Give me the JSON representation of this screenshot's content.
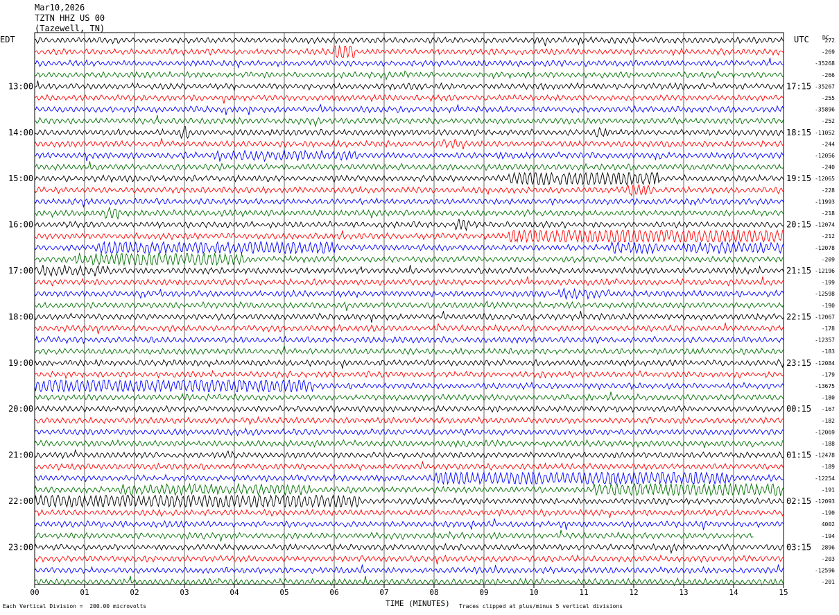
{
  "header": {
    "date": "Mar10,2026",
    "station": "TZTN HHZ US 00",
    "location": "(Tazewell, TN)"
  },
  "left_tz": "EDT",
  "right_tz": "UTC",
  "dc_label": "DC",
  "footer": {
    "division_note": "Each Vertical Division =  200.00 microvolts",
    "clip_note": "Traces clipped at plus/minus 5 vertical divisions",
    "xlabel": "TIME (MINUTES)"
  },
  "chart_data": {
    "type": "line",
    "title": "",
    "xlabel": "TIME (MINUTES)",
    "xlim": [
      0,
      15
    ],
    "x_ticks": [
      "00",
      "01",
      "02",
      "03",
      "04",
      "05",
      "06",
      "07",
      "08",
      "09",
      "10",
      "11",
      "12",
      "13",
      "14",
      "15"
    ],
    "left_hour_labels": [
      "13:00",
      "14:00",
      "15:00",
      "16:00",
      "17:00",
      "18:00",
      "19:00",
      "20:00",
      "21:00",
      "22:00",
      "23:00"
    ],
    "right_hour_labels": [
      "17:15",
      "18:15",
      "19:15",
      "20:15",
      "21:15",
      "22:15",
      "23:15",
      "00:15",
      "01:15",
      "02:15",
      "03:15"
    ],
    "trace_colors": [
      "#000000",
      "#ff0000",
      "#0000ff",
      "#007000"
    ],
    "dc_offsets": [
      "272",
      "-269",
      "-35268",
      "-266",
      "-35267",
      "-255",
      "-35896",
      "-252",
      "-11052",
      "-244",
      "-12056",
      "-240",
      "-12065",
      "-228",
      "-11993",
      "-218",
      "-12074",
      "-212",
      "-12078",
      "-209",
      "-12196",
      "-199",
      "-12598",
      "-190",
      "-12067",
      "-178",
      "-12357",
      "-183",
      "-12084",
      "-179",
      "-13675",
      "-180",
      "-167",
      "-182",
      "-12069",
      "-188",
      "-12478",
      "-189",
      "-12254",
      "-191",
      "-12093",
      "-190",
      "4002",
      "-194",
      "2896",
      "-203",
      "-12596",
      "-201"
    ]
  }
}
